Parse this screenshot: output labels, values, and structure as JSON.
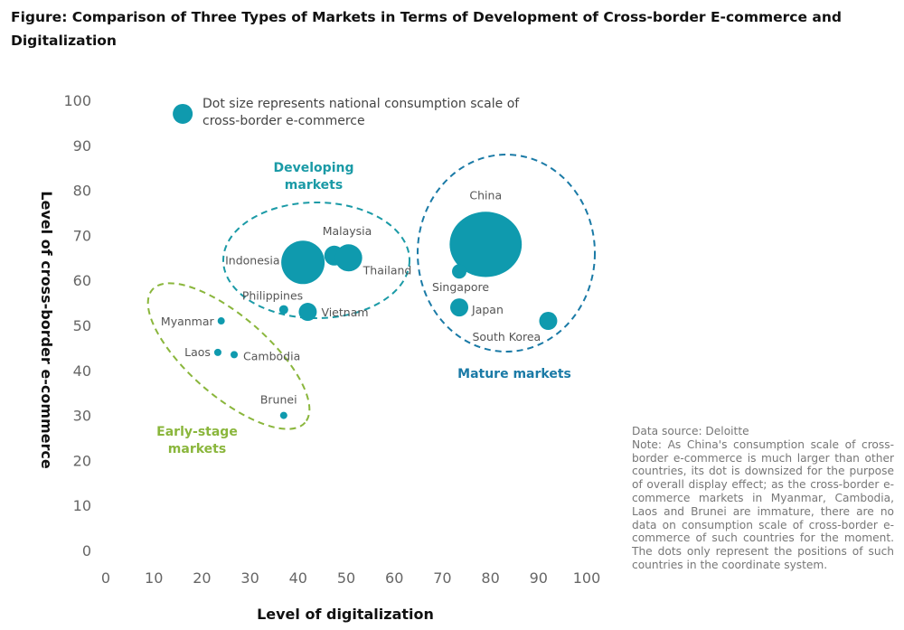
{
  "title": "Figure: Comparison of Three Types of Markets in Terms of Development of Cross-border E-commerce and Digitalization",
  "chart_data": {
    "type": "scatter",
    "subtype": "bubble",
    "xlabel": "Level of digitalization",
    "ylabel": "Level of cross-border e-commerce",
    "xlim": [
      0,
      100
    ],
    "ylim": [
      0,
      100
    ],
    "xticks": [
      0,
      10,
      20,
      30,
      40,
      50,
      60,
      70,
      80,
      90,
      100
    ],
    "yticks": [
      0,
      10,
      20,
      30,
      40,
      50,
      60,
      70,
      80,
      90,
      100
    ],
    "grid": false,
    "size_legend": {
      "text": "Dot size represents national consumption scale of cross-border e-commerce",
      "x": 16,
      "y": 97,
      "size": 11
    },
    "points": [
      {
        "name": "China",
        "x": 79,
        "y": 68,
        "size": 38,
        "group": "Mature markets"
      },
      {
        "name": "Singapore",
        "x": 73.5,
        "y": 62,
        "size": 8,
        "group": "Mature markets"
      },
      {
        "name": "Japan",
        "x": 73.5,
        "y": 54,
        "size": 10,
        "group": "Mature markets"
      },
      {
        "name": "South Korea",
        "x": 92,
        "y": 51,
        "size": 10,
        "group": "Mature markets"
      },
      {
        "name": "Indonesia",
        "x": 41,
        "y": 64,
        "size": 24,
        "group": "Developing markets"
      },
      {
        "name": "Malaysia",
        "x": 47.5,
        "y": 65.5,
        "size": 11,
        "group": "Developing markets"
      },
      {
        "name": "Thailand",
        "x": 50.5,
        "y": 65,
        "size": 15,
        "group": "Developing markets"
      },
      {
        "name": "Philippines",
        "x": 37,
        "y": 53.5,
        "size": 5,
        "group": "Developing markets"
      },
      {
        "name": "Vietnam",
        "x": 42,
        "y": 53,
        "size": 10,
        "group": "Developing markets"
      },
      {
        "name": "Myanmar",
        "x": 24,
        "y": 51,
        "size": 4,
        "group": "Early-stage markets"
      },
      {
        "name": "Laos",
        "x": 23.3,
        "y": 44,
        "size": 4,
        "group": "Early-stage markets"
      },
      {
        "name": "Cambodia",
        "x": 26.7,
        "y": 43.5,
        "size": 4,
        "group": "Early-stage markets"
      },
      {
        "name": "Brunei",
        "x": 37,
        "y": 30,
        "size": 4,
        "group": "Early-stage markets"
      }
    ],
    "groups": [
      {
        "name": "Developing markets",
        "line1": "Developing",
        "line2": "markets",
        "color": "#1a9aa6"
      },
      {
        "name": "Mature markets",
        "line1": "Mature markets",
        "line2": "",
        "color": "#1a7aa6"
      },
      {
        "name": "Early-stage markets",
        "line1": "Early-stage",
        "line2": "markets",
        "color": "#8ab63c"
      }
    ],
    "dot_color": "#0f9aae"
  },
  "note": {
    "source": "Data source: Deloitte",
    "text": "Note: As China's consumption scale of cross-border e-commerce is much larger than other countries, its dot is downsized for the purpose of overall display effect; as the cross-border e-commerce markets in Myanmar, Cambodia, Laos and Brunei are immature, there are no data on consumption scale of cross-border e-commerce of such countries for the moment. The dots only represent the positions of such countries in the coordinate system."
  }
}
